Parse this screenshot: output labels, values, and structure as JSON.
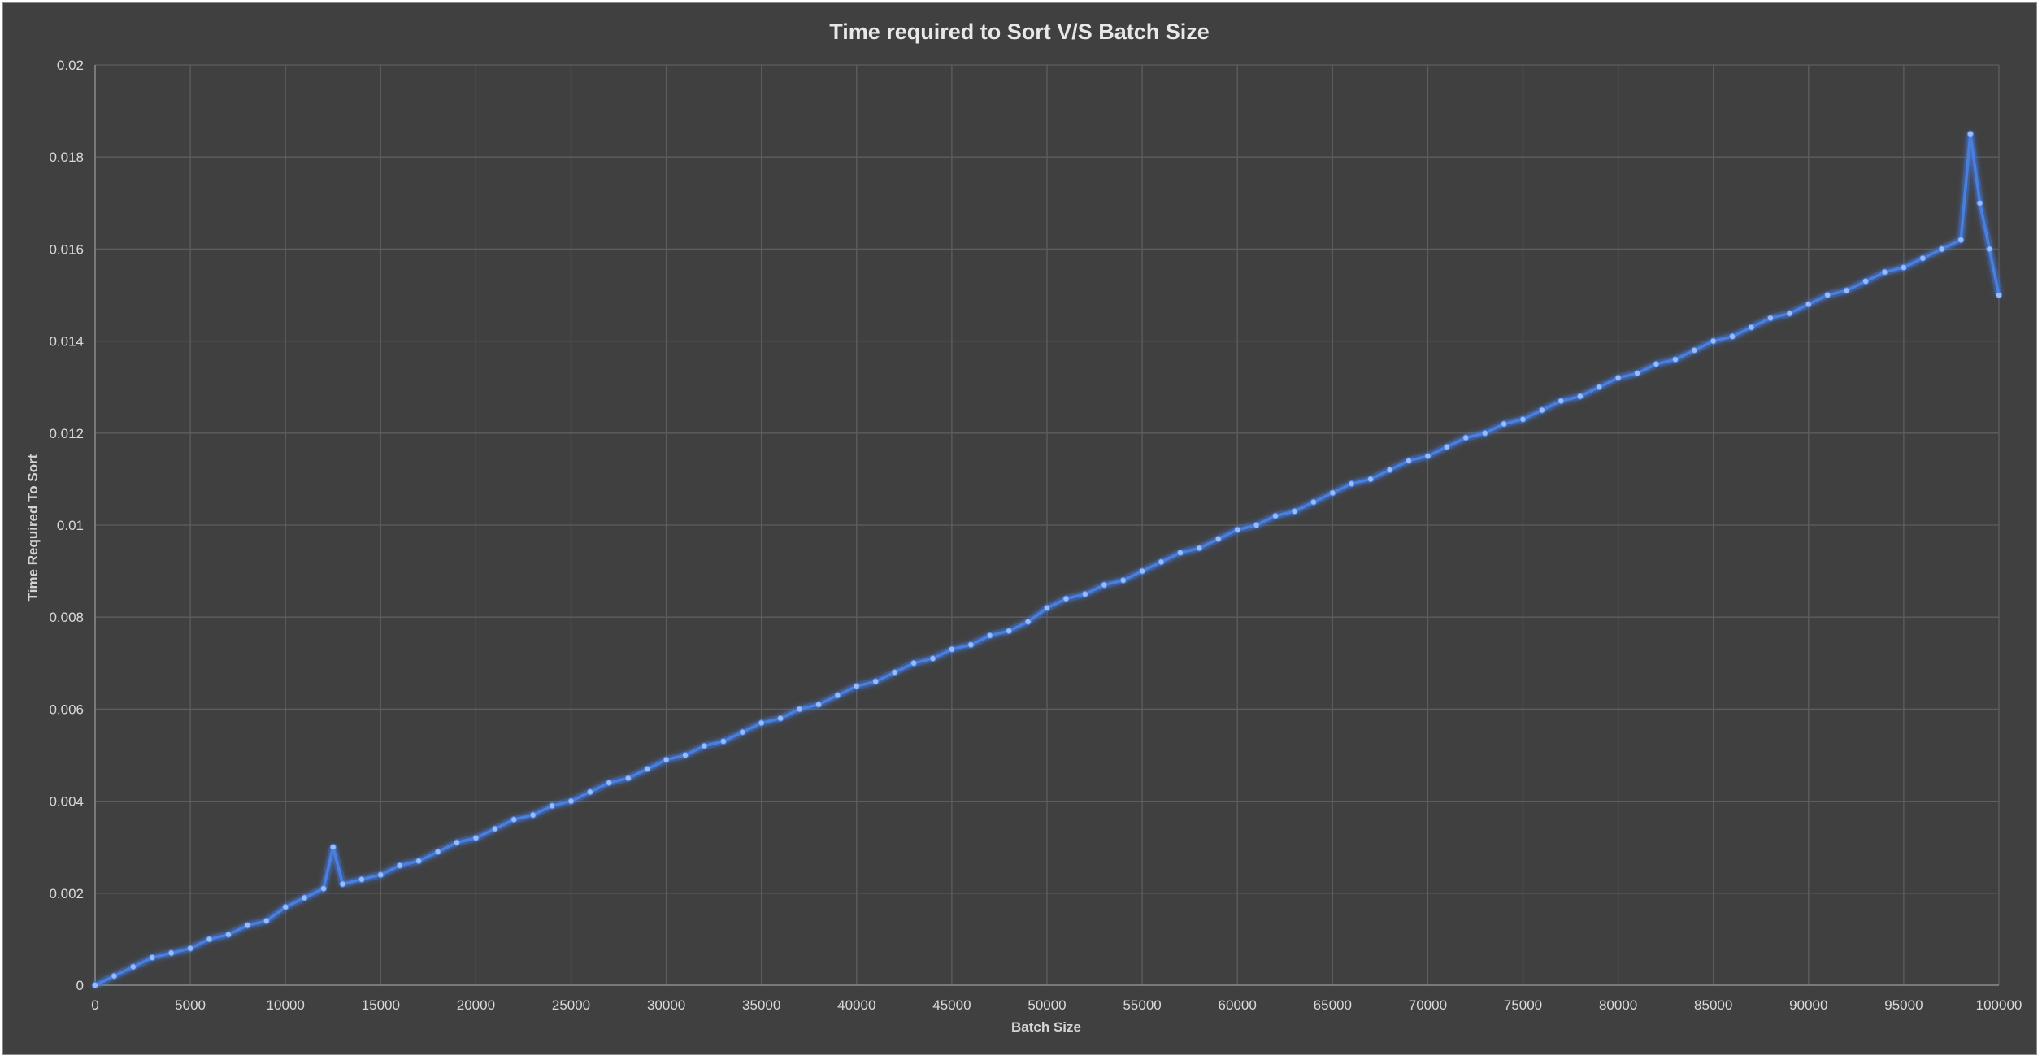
{
  "chart_data": {
    "type": "line",
    "title": "Time required to Sort V/S Batch Size",
    "xlabel": "Batch Size",
    "ylabel": "Time Required To Sort",
    "xlim": [
      0,
      100000
    ],
    "ylim": [
      0,
      0.02
    ],
    "x_ticks": [
      "0",
      "5000",
      "10000",
      "15000",
      "20000",
      "25000",
      "30000",
      "35000",
      "40000",
      "45000",
      "50000",
      "55000",
      "60000",
      "65000",
      "70000",
      "75000",
      "80000",
      "85000",
      "90000",
      "95000",
      "100000"
    ],
    "y_ticks": [
      "0",
      "0.002",
      "0.004",
      "0.006",
      "0.008",
      "0.01",
      "0.012",
      "0.014",
      "0.016",
      "0.018",
      "0.02"
    ],
    "grid": true,
    "legend": "none",
    "colors": {
      "background": "#404040",
      "series": "#4a7fe0",
      "marker": "#9bbcf5",
      "glow": "#3d6fd8"
    },
    "series": [
      {
        "x": [
          0,
          1000,
          2000,
          3000,
          4000,
          5000,
          6000,
          7000,
          8000,
          9000,
          10000,
          11000,
          12000,
          12500,
          13000,
          14000,
          15000,
          16000,
          17000,
          18000,
          19000,
          20000,
          21000,
          22000,
          23000,
          24000,
          25000,
          26000,
          27000,
          28000,
          29000,
          30000,
          31000,
          32000,
          33000,
          34000,
          35000,
          36000,
          37000,
          38000,
          39000,
          40000,
          41000,
          42000,
          43000,
          44000,
          45000,
          46000,
          47000,
          48000,
          49000,
          50000,
          51000,
          52000,
          53000,
          54000,
          55000,
          56000,
          57000,
          58000,
          59000,
          60000,
          61000,
          62000,
          63000,
          64000,
          65000,
          66000,
          67000,
          68000,
          69000,
          70000,
          71000,
          72000,
          73000,
          74000,
          75000,
          76000,
          77000,
          78000,
          79000,
          80000,
          81000,
          82000,
          83000,
          84000,
          85000,
          86000,
          87000,
          88000,
          89000,
          90000,
          91000,
          92000,
          93000,
          94000,
          95000,
          96000,
          97000,
          98000,
          98500,
          99000,
          99500,
          100000
        ],
        "values": [
          0.0,
          0.0002,
          0.0004,
          0.0006,
          0.0007,
          0.0008,
          0.001,
          0.0011,
          0.0013,
          0.0014,
          0.0017,
          0.0019,
          0.0021,
          0.003,
          0.0022,
          0.0023,
          0.0024,
          0.0026,
          0.0027,
          0.0029,
          0.0031,
          0.0032,
          0.0034,
          0.0036,
          0.0037,
          0.0039,
          0.004,
          0.0042,
          0.0044,
          0.0045,
          0.0047,
          0.0049,
          0.005,
          0.0052,
          0.0053,
          0.0055,
          0.0057,
          0.0058,
          0.006,
          0.0061,
          0.0063,
          0.0065,
          0.0066,
          0.0068,
          0.007,
          0.0071,
          0.0073,
          0.0074,
          0.0076,
          0.0077,
          0.0079,
          0.0082,
          0.0084,
          0.0085,
          0.0087,
          0.0088,
          0.009,
          0.0092,
          0.0094,
          0.0095,
          0.0097,
          0.0099,
          0.01,
          0.0102,
          0.0103,
          0.0105,
          0.0107,
          0.0109,
          0.011,
          0.0112,
          0.0114,
          0.0115,
          0.0117,
          0.0119,
          0.012,
          0.0122,
          0.0123,
          0.0125,
          0.0127,
          0.0128,
          0.013,
          0.0132,
          0.0133,
          0.0135,
          0.0136,
          0.0138,
          0.014,
          0.0141,
          0.0143,
          0.0145,
          0.0146,
          0.0148,
          0.015,
          0.0151,
          0.0153,
          0.0155,
          0.0156,
          0.0158,
          0.016,
          0.0162,
          0.0185,
          0.017,
          0.016,
          0.015
        ]
      }
    ]
  }
}
